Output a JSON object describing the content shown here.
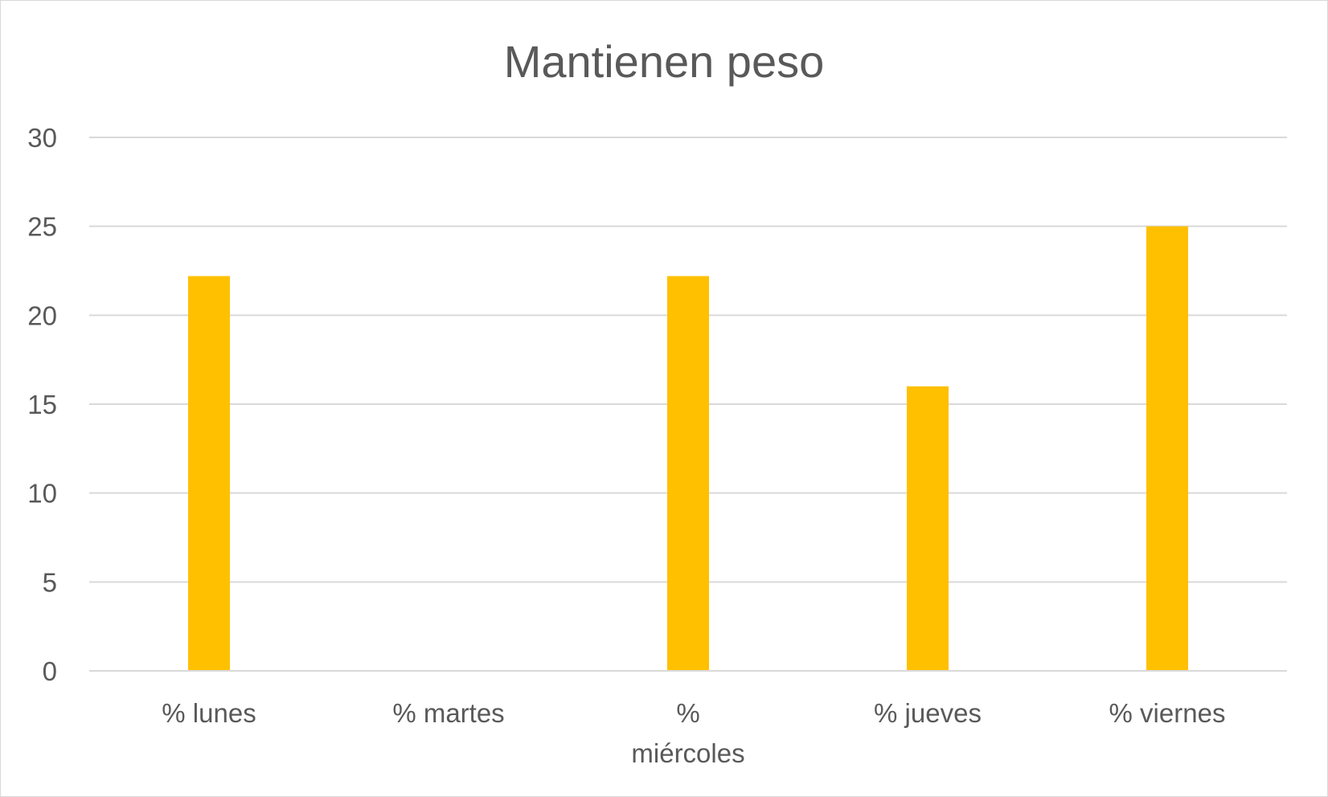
{
  "chart_data": {
    "type": "bar",
    "title": "Mantienen peso",
    "categories": [
      "% lunes",
      "% martes",
      "% miércoles",
      "% jueves",
      "% viernes"
    ],
    "category_label_lines": [
      [
        "% lunes"
      ],
      [
        "% martes"
      ],
      [
        "%",
        "miércoles"
      ],
      [
        "% jueves"
      ],
      [
        "% viernes"
      ]
    ],
    "series": [
      {
        "values": [
          22.2,
          0,
          22.2,
          16,
          25
        ]
      }
    ],
    "ylim": [
      0,
      30
    ],
    "yticks": [
      0,
      5,
      10,
      15,
      20,
      25,
      30
    ],
    "xlabel": "",
    "ylabel": "",
    "grid": true,
    "legend": "none",
    "bar_color": "#FFC000"
  }
}
